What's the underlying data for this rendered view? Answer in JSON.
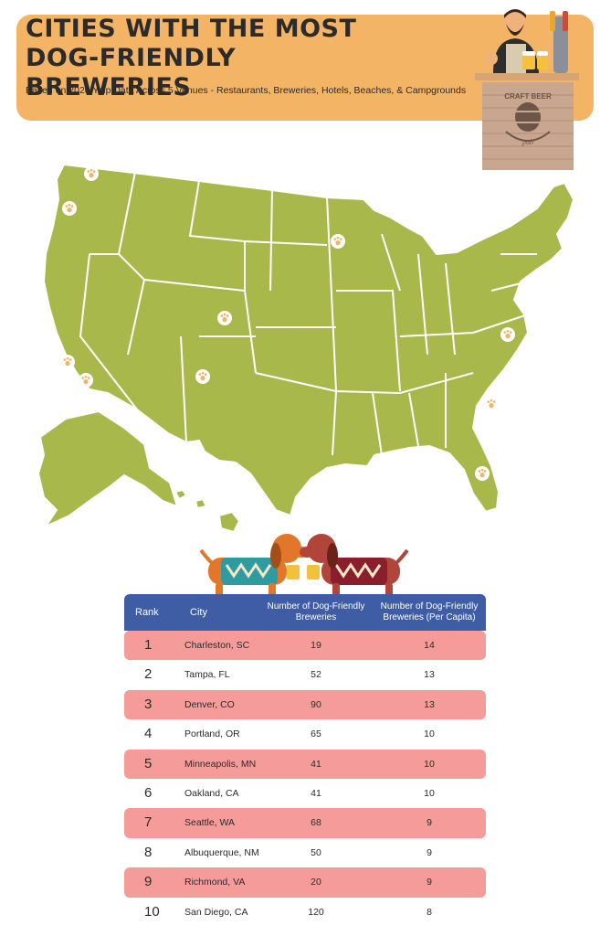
{
  "header": {
    "title": "Cities with the most Dog-Friendly Breweries",
    "subtitle": "Based on 2020 Yelp Data Across 5 Venues - Restaurants, Breweries, Hotels, Beaches, & Campgrounds",
    "badge_top": "CRAFT BEER",
    "badge_bottom": "pub"
  },
  "colors": {
    "banner": "#f3b466",
    "map_fill": "#a9b84a",
    "header_row": "#3f5da4",
    "highlight_row": "#f59c9b",
    "paw_marker": "#f3b466"
  },
  "map": {
    "marker_icon": "paw-icon",
    "markers": [
      "Seattle, WA",
      "Portland, OR",
      "Minneapolis, MN",
      "Denver, CO",
      "Oakland, CA",
      "San Diego, CA",
      "Albuquerque, NM",
      "Richmond, VA",
      "Charleston, SC",
      "Tampa, FL"
    ]
  },
  "table": {
    "headers": {
      "rank": "Rank",
      "city": "City",
      "number": "Number of Dog-Friendly Breweries",
      "per_capita": "Number of Dog-Friendly Breweries (Per Capita)"
    },
    "rows": [
      {
        "rank": "1",
        "city": "Charleston, SC",
        "number": "19",
        "per_capita": "14"
      },
      {
        "rank": "2",
        "city": "Tampa, FL",
        "number": "52",
        "per_capita": "13"
      },
      {
        "rank": "3",
        "city": "Denver, CO",
        "number": "90",
        "per_capita": "13"
      },
      {
        "rank": "4",
        "city": "Portland, OR",
        "number": "65",
        "per_capita": "10"
      },
      {
        "rank": "5",
        "city": "Minneapolis, MN",
        "number": "41",
        "per_capita": "10"
      },
      {
        "rank": "6",
        "city": "Oakland, CA",
        "number": "41",
        "per_capita": "10"
      },
      {
        "rank": "7",
        "city": "Seattle, WA",
        "number": "68",
        "per_capita": "9"
      },
      {
        "rank": "8",
        "city": "Albuquerque, NM",
        "number": "50",
        "per_capita": "9"
      },
      {
        "rank": "9",
        "city": "Richmond, VA",
        "number": "20",
        "per_capita": "9"
      },
      {
        "rank": "10",
        "city": "San Diego, CA",
        "number": "120",
        "per_capita": "8"
      }
    ]
  }
}
